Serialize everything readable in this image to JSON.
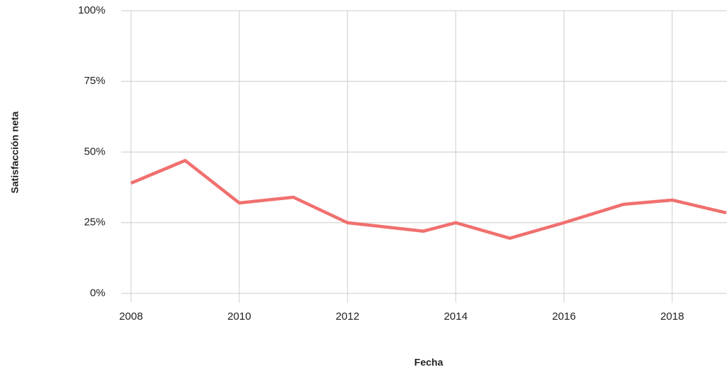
{
  "chart_data": {
    "type": "line",
    "x_label": "Fecha",
    "y_label": "Satisfacción neta",
    "x": [
      2008,
      2009,
      2010,
      2011,
      2012,
      2013.4,
      2014,
      2015,
      2016,
      2017.1,
      2018,
      2019
    ],
    "series": [
      {
        "name": "Satisfacción neta",
        "color": "#f0706f",
        "values": [
          39,
          47,
          32,
          34,
          25,
          22,
          25,
          19.5,
          25,
          31.5,
          33,
          28.5
        ]
      }
    ],
    "xlim": [
      2008,
      2019
    ],
    "xticks": [
      2008,
      2010,
      2012,
      2014,
      2016,
      2018
    ],
    "ylim": [
      0,
      100
    ],
    "yticks": [
      {
        "value": 0,
        "label": "0%"
      },
      {
        "value": 25,
        "label": "25%"
      },
      {
        "value": 50,
        "label": "50%"
      },
      {
        "value": 75,
        "label": "75%"
      },
      {
        "value": 100,
        "label": "100%"
      }
    ],
    "grid": true
  }
}
